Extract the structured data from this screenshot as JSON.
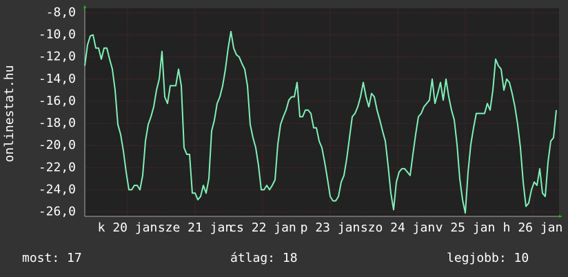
{
  "chart_data": {
    "type": "line",
    "y_label": "onlinestat.hu",
    "x": [
      0,
      1,
      2,
      3,
      4,
      5,
      6,
      7,
      8,
      9,
      10,
      11,
      12,
      13,
      14,
      15,
      16,
      17,
      18,
      19,
      20,
      21,
      22,
      23,
      24,
      25,
      26,
      27,
      28,
      29,
      30,
      31,
      32,
      33,
      34,
      35,
      36,
      37,
      38,
      39,
      40,
      41,
      42,
      43,
      44,
      45,
      46,
      47,
      48,
      49,
      50,
      51,
      52,
      53,
      54,
      55,
      56,
      57,
      58,
      59,
      60,
      61,
      62,
      63,
      64,
      65,
      66,
      67,
      68,
      69,
      70,
      71,
      72,
      73,
      74,
      75,
      76,
      77,
      78,
      79,
      80,
      81,
      82,
      83,
      84,
      85,
      86,
      87,
      88,
      89,
      90,
      91,
      92,
      93,
      94,
      95,
      96,
      97,
      98,
      99,
      100,
      101,
      102,
      103,
      104,
      105,
      106,
      107,
      108,
      109,
      110,
      111,
      112,
      113,
      114,
      115,
      116,
      117,
      118,
      119,
      120,
      121,
      122,
      123,
      124,
      125,
      126,
      127,
      128,
      129,
      130,
      131,
      132,
      133,
      134,
      135,
      136,
      137,
      138,
      139,
      140,
      141,
      142,
      143,
      144,
      145,
      146,
      147,
      148,
      149,
      150,
      151,
      152,
      153,
      154,
      155,
      156,
      157,
      158,
      159,
      160,
      161,
      162,
      163,
      164,
      165,
      166,
      167,
      168,
      169,
      170,
      171
    ],
    "values": [
      -12.8,
      -10.9,
      -10.1,
      -10.0,
      -11.2,
      -11.2,
      -12.2,
      -11.2,
      -11.2,
      -12.2,
      -13.1,
      -15.0,
      -18.1,
      -19.0,
      -20.5,
      -22.4,
      -24.0,
      -24.0,
      -23.6,
      -23.6,
      -24.0,
      -22.7,
      -19.6,
      -18.1,
      -17.4,
      -16.5,
      -15.0,
      -14.0,
      -11.5,
      -15.6,
      -16.2,
      -14.6,
      -14.6,
      -14.6,
      -13.1,
      -14.6,
      -20.2,
      -20.8,
      -20.8,
      -24.3,
      -24.3,
      -24.9,
      -24.6,
      -23.6,
      -24.3,
      -23.0,
      -18.7,
      -17.7,
      -16.2,
      -15.6,
      -14.6,
      -13.1,
      -11.2,
      -9.7,
      -11.2,
      -11.8,
      -12.0,
      -12.6,
      -13.1,
      -14.6,
      -18.1,
      -19.3,
      -20.2,
      -21.8,
      -24.0,
      -24.0,
      -23.6,
      -24.0,
      -23.6,
      -23.1,
      -19.9,
      -18.1,
      -17.4,
      -16.8,
      -15.9,
      -15.6,
      -15.6,
      -14.3,
      -17.4,
      -17.4,
      -16.8,
      -16.8,
      -17.1,
      -18.4,
      -18.4,
      -19.6,
      -20.2,
      -21.5,
      -23.0,
      -24.6,
      -25.0,
      -25.0,
      -24.6,
      -23.3,
      -22.7,
      -21.2,
      -19.3,
      -17.4,
      -17.1,
      -16.5,
      -15.6,
      -14.3,
      -15.6,
      -16.5,
      -15.3,
      -15.6,
      -16.8,
      -17.7,
      -18.7,
      -19.6,
      -21.8,
      -24.3,
      -25.8,
      -23.3,
      -22.4,
      -22.1,
      -22.1,
      -22.4,
      -22.7,
      -20.8,
      -19.0,
      -17.4,
      -17.1,
      -16.5,
      -16.2,
      -15.9,
      -14.0,
      -16.2,
      -15.3,
      -14.3,
      -15.9,
      -14.0,
      -15.6,
      -16.8,
      -17.7,
      -19.9,
      -23.0,
      -24.9,
      -26.1,
      -22.4,
      -19.9,
      -18.4,
      -17.1,
      -17.1,
      -17.1,
      -17.1,
      -16.2,
      -16.8,
      -15.0,
      -12.2,
      -12.8,
      -13.1,
      -15.0,
      -14.0,
      -14.3,
      -15.3,
      -16.5,
      -18.1,
      -20.2,
      -23.3,
      -25.5,
      -25.2,
      -24.0,
      -23.3,
      -23.6,
      -22.1,
      -24.3,
      -24.6,
      -21.5,
      -19.6,
      -19.3,
      -16.8
    ],
    "color": "#80f0b8",
    "xlim": [
      0,
      172
    ],
    "xticks": [
      {
        "value": 15.5,
        "label": "k 20 jan"
      },
      {
        "value": 40,
        "label": "sze 21 jan"
      },
      {
        "value": 64.5,
        "label": "cs 22 jan"
      },
      {
        "value": 89,
        "label": "p 23 jan"
      },
      {
        "value": 113.5,
        "label": "szo 24 jan"
      },
      {
        "value": 138,
        "label": "v 25 jan"
      },
      {
        "value": 162.5,
        "label": "h 26 jan"
      }
    ],
    "ylim": [
      -26.4,
      -7.6
    ],
    "yticks": [
      {
        "value": -8,
        "label": "-8,0"
      },
      {
        "value": -10,
        "label": "-10,0"
      },
      {
        "value": -12,
        "label": "-12,0"
      },
      {
        "value": -14,
        "label": "-14,0"
      },
      {
        "value": -16,
        "label": "-16,0"
      },
      {
        "value": -18,
        "label": "-18,0"
      },
      {
        "value": -20,
        "label": "-20,0"
      },
      {
        "value": -22,
        "label": "-22,0"
      },
      {
        "value": -24,
        "label": "-24,0"
      },
      {
        "value": -26,
        "label": "-26,0"
      }
    ],
    "grid": true,
    "footer": {
      "current": "most: 17",
      "average": "átlag: 18",
      "best": "legjobb: 10"
    }
  }
}
